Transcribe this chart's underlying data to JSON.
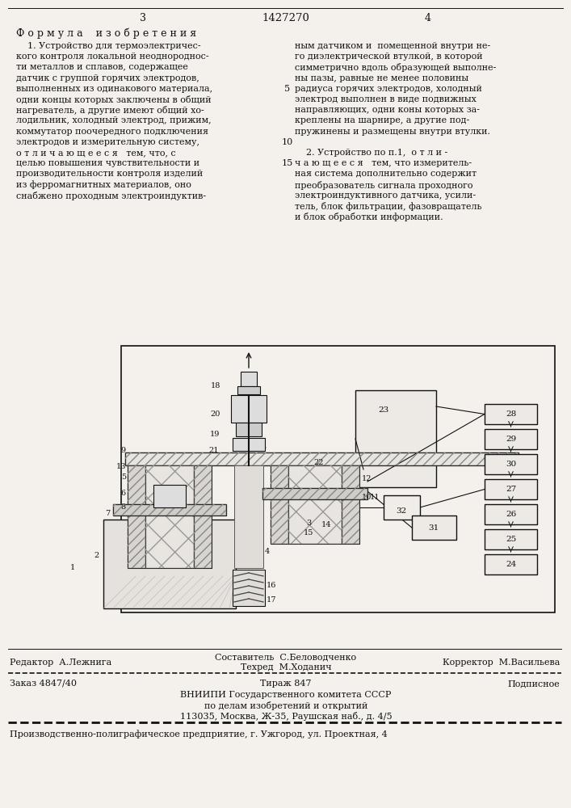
{
  "patent_number": "1427270",
  "page_left": "3",
  "page_right": "4",
  "bg": "#f4f1ec",
  "tc": "#111111",
  "formula_header": "Ф о р м у л а    и з о б р е т е н и я",
  "left_col": [
    "    1. Устройство для термоэлектричес-",
    "кого контроля локальной неоднороднос-",
    "ти металлов и сплавов, содержащее",
    "датчик с группой горячих электродов,",
    "выполненных из одинакового материала,",
    "одни концы которых заключены в общий",
    "нагреватель, а другие имеют общий хо-",
    "лодильник, холодный электрод, прижим,",
    "коммутатор поочередного подключения",
    "электродов и измерительную систему,",
    "о т л и ч а ю щ е е с я   тем, что, с",
    "целью повышения чувствительности и",
    "производительности контроля изделий",
    "из ферромагнитных материалов, оно",
    "снабжено проходным электроиндуктив-"
  ],
  "right_col_top": [
    "ным датчиком и  помещенной внутри не-",
    "го диэлектрической втулкой, в которой",
    "симметрично вдоль образующей выполне-",
    "ны пазы, равные не менее половины",
    "радиуса горячих электродов, холодный",
    "электрод выполнен в виде подвижных",
    "направляющих, одни коны которых за-",
    "креплены на шарнире, а другие под-",
    "пружинены и размещены внутри втулки."
  ],
  "right_col_bot": [
    "    2. Устройство по п.1,  о т л и -",
    "ч а ю щ е е с я   тем, что измеритель-",
    "ная система дополнительно содержит",
    "преобразователь сигнала проходного",
    "электроиндуктивного датчика, усили-",
    "тель, блок фильтрации, фазовращатель",
    "и блок обработки информации."
  ],
  "footer_left": "Редактор  А.Лежнига",
  "footer_center1": "Составитель  С.Беловодченко",
  "footer_center2": "Техред  М.Ходанич",
  "footer_right": "Корректор  М.Васильева",
  "footer_order": "Заказ 4847/40",
  "footer_tirazh": "Тираж 847",
  "footer_podpisnoe": "Подписное",
  "footer_vniipи": "ВНИИПИ Государственного комитета СССР",
  "footer_po_delam": "по делам изобретений и открытий",
  "footer_address": "113035, Москва, Ж-35, Раушская наб., д. 4/5",
  "footer_last": "Производственно-полиграфическое предприятие, г. Ужгород, ул. Проектная, 4"
}
